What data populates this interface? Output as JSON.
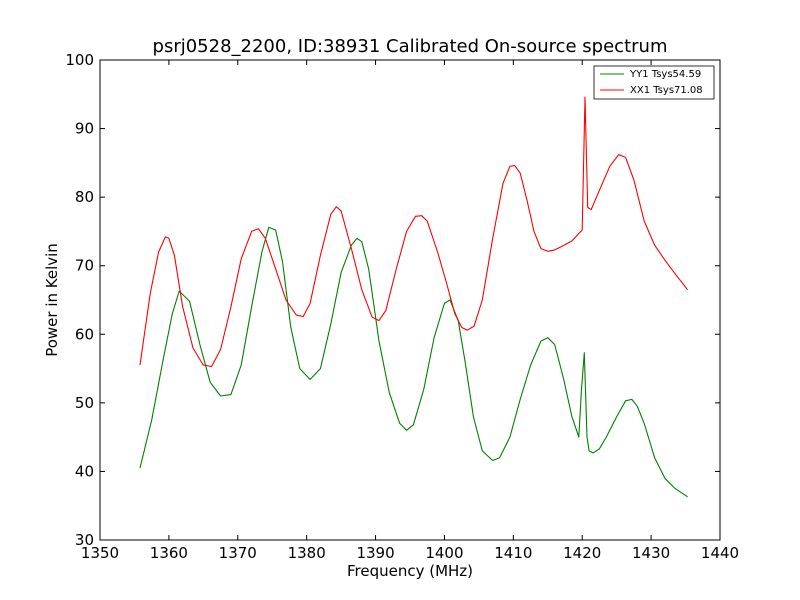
{
  "chart_data": {
    "type": "line",
    "title": "psrj0528_2200, ID:38931 Calibrated On-source spectrum",
    "xlabel": "Frequency (MHz)",
    "ylabel": "Power in Kelvin",
    "xlim": [
      1350,
      1440
    ],
    "ylim": [
      30,
      100
    ],
    "xticks": [
      1350,
      1360,
      1370,
      1380,
      1390,
      1400,
      1410,
      1420,
      1430,
      1440
    ],
    "yticks": [
      30,
      40,
      50,
      60,
      70,
      80,
      90,
      100
    ],
    "grid": false,
    "legend_position": "top-right",
    "series": [
      {
        "name": "YY1 Tsys54.59",
        "color": "#008000",
        "x": [
          1355.8,
          1357.5,
          1359.2,
          1360.5,
          1361.5,
          1363.0,
          1364.5,
          1366.0,
          1367.5,
          1369.0,
          1370.5,
          1372.0,
          1373.5,
          1374.5,
          1375.5,
          1376.5,
          1377.7,
          1379.0,
          1380.5,
          1382.0,
          1383.5,
          1385.0,
          1386.5,
          1387.3,
          1388.0,
          1389.0,
          1390.5,
          1392.0,
          1393.5,
          1394.5,
          1395.5,
          1397.0,
          1398.5,
          1400.0,
          1400.8,
          1402.0,
          1403.0,
          1404.2,
          1405.5,
          1407.0,
          1408.0,
          1409.5,
          1411.0,
          1412.5,
          1414.0,
          1415.0,
          1416.0,
          1417.3,
          1418.5,
          1419.5,
          1419.9,
          1420.3,
          1420.7,
          1421.0,
          1421.6,
          1422.5,
          1423.5,
          1425.0,
          1426.3,
          1427.2,
          1428.0,
          1429.0,
          1430.5,
          1432.0,
          1433.5,
          1435.3
        ],
        "values": [
          40.5,
          47.5,
          56.5,
          63.0,
          66.3,
          64.8,
          58.5,
          53.0,
          51.0,
          51.2,
          55.5,
          64.0,
          72.0,
          75.6,
          75.2,
          70.5,
          61.0,
          55.0,
          53.4,
          55.0,
          61.5,
          69.0,
          73.0,
          74.0,
          73.5,
          69.5,
          59.0,
          51.5,
          47.0,
          46.0,
          46.8,
          52.0,
          59.5,
          64.5,
          65.0,
          62.0,
          56.0,
          48.0,
          43.0,
          41.6,
          42.0,
          45.0,
          50.5,
          55.5,
          59.0,
          59.5,
          58.5,
          53.5,
          48.0,
          45.0,
          52.0,
          57.3,
          45.0,
          43.0,
          42.7,
          43.3,
          45.0,
          48.0,
          50.3,
          50.5,
          49.5,
          47.0,
          42.0,
          39.0,
          37.5,
          36.3
        ]
      },
      {
        "name": "XX1 Tsys71.08",
        "color": "#ff0000",
        "x": [
          1355.8,
          1357.3,
          1358.5,
          1359.5,
          1360.0,
          1360.8,
          1362.0,
          1363.5,
          1365.0,
          1366.2,
          1367.5,
          1369.0,
          1370.5,
          1372.0,
          1373.0,
          1374.0,
          1375.5,
          1377.0,
          1378.5,
          1379.5,
          1380.5,
          1382.0,
          1383.5,
          1384.3,
          1385.0,
          1386.5,
          1388.0,
          1389.5,
          1390.5,
          1391.5,
          1393.0,
          1394.5,
          1395.8,
          1396.7,
          1397.5,
          1399.0,
          1400.3,
          1401.5,
          1402.5,
          1403.3,
          1404.3,
          1405.5,
          1407.0,
          1408.5,
          1409.5,
          1410.2,
          1411.0,
          1412.0,
          1413.0,
          1414.0,
          1415.0,
          1416.0,
          1417.0,
          1418.5,
          1419.5,
          1420.0,
          1420.4,
          1420.8,
          1421.3,
          1422.5,
          1424.0,
          1425.3,
          1426.3,
          1427.5,
          1429.0,
          1430.5,
          1432.0,
          1433.5,
          1435.3
        ],
        "values": [
          55.5,
          66.0,
          72.0,
          74.2,
          74.0,
          71.5,
          64.0,
          58.0,
          55.5,
          55.3,
          57.8,
          64.0,
          71.0,
          75.0,
          75.4,
          74.0,
          69.5,
          65.0,
          62.8,
          62.6,
          64.5,
          71.5,
          77.5,
          78.6,
          78.0,
          72.5,
          66.5,
          62.5,
          62.0,
          63.5,
          69.5,
          75.0,
          77.2,
          77.3,
          76.5,
          72.0,
          67.5,
          63.0,
          61.0,
          60.6,
          61.2,
          65.0,
          74.0,
          82.0,
          84.5,
          84.6,
          83.5,
          79.5,
          75.0,
          72.5,
          72.1,
          72.3,
          72.8,
          73.6,
          74.7,
          75.2,
          94.6,
          78.5,
          78.2,
          81.0,
          84.5,
          86.2,
          85.8,
          82.5,
          76.5,
          73.0,
          70.8,
          68.8,
          66.5
        ]
      }
    ]
  }
}
